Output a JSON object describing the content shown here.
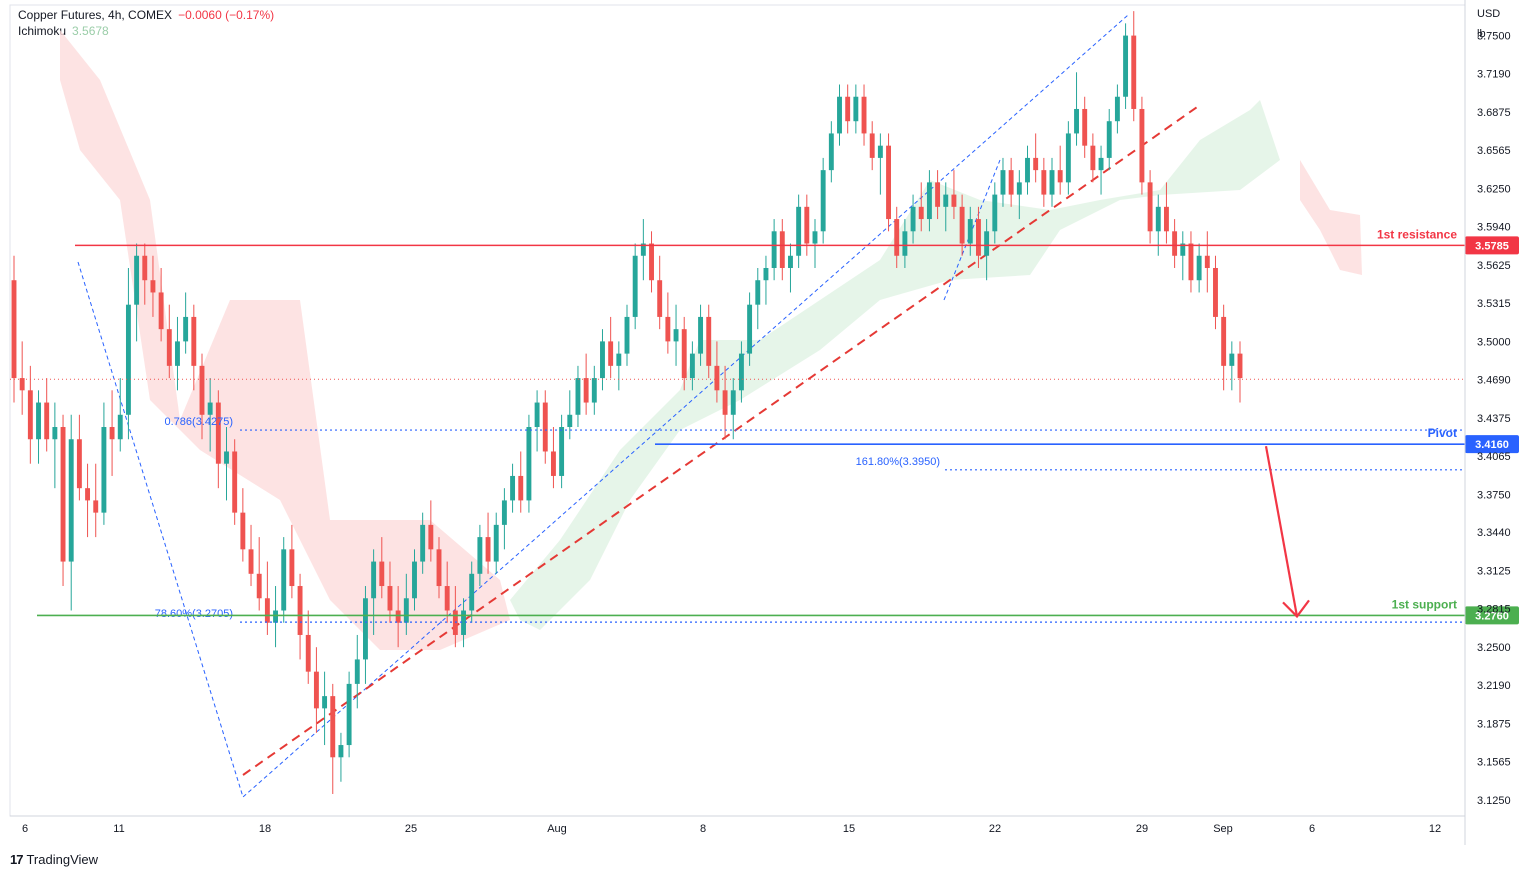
{
  "header": {
    "symbol_line": "Copper Futures, 4h, COMEX",
    "change": "−0.0060 (−0.17%)",
    "indicator_name": "Ichimoku",
    "indicator_value": "3.5678"
  },
  "branding": {
    "logo": "17",
    "name": "TradingView"
  },
  "colors": {
    "up": "#26a69a",
    "down": "#ef5350",
    "resistance": "#f23645",
    "pivot": "#2962ff",
    "support": "#4caf50",
    "fib": "#2962ff",
    "cloud_red": "#fddcdc",
    "cloud_green": "#e3f4e7"
  },
  "chart_data": {
    "type": "candlestick",
    "title": "Copper Futures, 4h, COMEX",
    "currency_label": "USD",
    "unit_label": "lb",
    "ylim": [
      3.112,
      3.775
    ],
    "y_ticks": [
      "3.7500",
      "3.7190",
      "3.6875",
      "3.6565",
      "3.6250",
      "3.5940",
      "3.5625",
      "3.5315",
      "3.5000",
      "3.4690",
      "3.4375",
      "3.4065",
      "3.3750",
      "3.3440",
      "3.3125",
      "3.2815",
      "3.2500",
      "3.2190",
      "3.1875",
      "3.1565",
      "3.1250"
    ],
    "x_ticks": [
      "6",
      "11",
      "18",
      "25",
      "Aug",
      "8",
      "15",
      "22",
      "29",
      "Sep",
      "6",
      "12"
    ],
    "last_price": 3.469,
    "levels": [
      {
        "name": "1st resistance",
        "label": "1st resistance",
        "value": 3.5785,
        "price_label": "3.5785",
        "color": "#f23645"
      },
      {
        "name": "Pivot",
        "label": "Pivot",
        "value": 3.416,
        "price_label": "3.4160",
        "color": "#2962ff"
      },
      {
        "name": "1st support",
        "label": "1st support",
        "value": 3.276,
        "price_label": "3.2760",
        "color": "#4caf50"
      }
    ],
    "fib_levels": [
      {
        "label": "0.786(3.4275)",
        "value": 3.4275
      },
      {
        "label": "161.80%(3.3950)",
        "value": 3.395
      },
      {
        "label": "78.60%(3.2705)",
        "value": 3.2705
      }
    ],
    "candles": [
      [
        3.55,
        3.57,
        3.45,
        3.47
      ],
      [
        3.47,
        3.5,
        3.44,
        3.46
      ],
      [
        3.46,
        3.48,
        3.4,
        3.42
      ],
      [
        3.42,
        3.46,
        3.4,
        3.45
      ],
      [
        3.45,
        3.47,
        3.41,
        3.42
      ],
      [
        3.42,
        3.45,
        3.38,
        3.43
      ],
      [
        3.43,
        3.44,
        3.3,
        3.32
      ],
      [
        3.32,
        3.44,
        3.28,
        3.42
      ],
      [
        3.42,
        3.44,
        3.37,
        3.38
      ],
      [
        3.38,
        3.4,
        3.34,
        3.37
      ],
      [
        3.37,
        3.4,
        3.34,
        3.36
      ],
      [
        3.36,
        3.45,
        3.35,
        3.43
      ],
      [
        3.43,
        3.46,
        3.39,
        3.42
      ],
      [
        3.42,
        3.47,
        3.41,
        3.44
      ],
      [
        3.44,
        3.56,
        3.42,
        3.53
      ],
      [
        3.53,
        3.58,
        3.5,
        3.57
      ],
      [
        3.57,
        3.58,
        3.53,
        3.55
      ],
      [
        3.55,
        3.57,
        3.52,
        3.54
      ],
      [
        3.54,
        3.56,
        3.5,
        3.51
      ],
      [
        3.51,
        3.53,
        3.47,
        3.48
      ],
      [
        3.48,
        3.52,
        3.46,
        3.5
      ],
      [
        3.5,
        3.54,
        3.49,
        3.52
      ],
      [
        3.52,
        3.53,
        3.46,
        3.48
      ],
      [
        3.48,
        3.49,
        3.42,
        3.44
      ],
      [
        3.44,
        3.47,
        3.41,
        3.45
      ],
      [
        3.45,
        3.46,
        3.38,
        3.4
      ],
      [
        3.4,
        3.43,
        3.37,
        3.41
      ],
      [
        3.41,
        3.42,
        3.35,
        3.36
      ],
      [
        3.36,
        3.38,
        3.32,
        3.33
      ],
      [
        3.33,
        3.35,
        3.3,
        3.31
      ],
      [
        3.31,
        3.34,
        3.28,
        3.29
      ],
      [
        3.29,
        3.32,
        3.26,
        3.27
      ],
      [
        3.27,
        3.3,
        3.25,
        3.28
      ],
      [
        3.28,
        3.34,
        3.27,
        3.33
      ],
      [
        3.33,
        3.35,
        3.29,
        3.3
      ],
      [
        3.3,
        3.31,
        3.24,
        3.26
      ],
      [
        3.26,
        3.28,
        3.22,
        3.23
      ],
      [
        3.23,
        3.25,
        3.18,
        3.2
      ],
      [
        3.2,
        3.23,
        3.17,
        3.21
      ],
      [
        3.21,
        3.22,
        3.13,
        3.16
      ],
      [
        3.16,
        3.18,
        3.14,
        3.17
      ],
      [
        3.17,
        3.23,
        3.16,
        3.22
      ],
      [
        3.22,
        3.26,
        3.2,
        3.24
      ],
      [
        3.24,
        3.3,
        3.22,
        3.29
      ],
      [
        3.29,
        3.33,
        3.26,
        3.32
      ],
      [
        3.32,
        3.34,
        3.29,
        3.3
      ],
      [
        3.3,
        3.32,
        3.27,
        3.28
      ],
      [
        3.28,
        3.3,
        3.25,
        3.27
      ],
      [
        3.27,
        3.31,
        3.26,
        3.29
      ],
      [
        3.29,
        3.33,
        3.28,
        3.32
      ],
      [
        3.32,
        3.36,
        3.31,
        3.35
      ],
      [
        3.35,
        3.37,
        3.32,
        3.33
      ],
      [
        3.33,
        3.34,
        3.29,
        3.3
      ],
      [
        3.3,
        3.32,
        3.27,
        3.28
      ],
      [
        3.28,
        3.3,
        3.25,
        3.26
      ],
      [
        3.26,
        3.29,
        3.25,
        3.28
      ],
      [
        3.28,
        3.32,
        3.27,
        3.31
      ],
      [
        3.31,
        3.35,
        3.3,
        3.34
      ],
      [
        3.34,
        3.36,
        3.31,
        3.32
      ],
      [
        3.32,
        3.36,
        3.31,
        3.35
      ],
      [
        3.35,
        3.38,
        3.33,
        3.37
      ],
      [
        3.37,
        3.4,
        3.36,
        3.39
      ],
      [
        3.39,
        3.41,
        3.36,
        3.37
      ],
      [
        3.37,
        3.44,
        3.36,
        3.43
      ],
      [
        3.43,
        3.46,
        3.41,
        3.45
      ],
      [
        3.45,
        3.46,
        3.4,
        3.41
      ],
      [
        3.41,
        3.43,
        3.38,
        3.39
      ],
      [
        3.39,
        3.44,
        3.38,
        3.43
      ],
      [
        3.43,
        3.46,
        3.42,
        3.44
      ],
      [
        3.44,
        3.48,
        3.43,
        3.47
      ],
      [
        3.47,
        3.49,
        3.44,
        3.45
      ],
      [
        3.45,
        3.48,
        3.44,
        3.47
      ],
      [
        3.47,
        3.51,
        3.46,
        3.5
      ],
      [
        3.5,
        3.52,
        3.47,
        3.48
      ],
      [
        3.48,
        3.5,
        3.46,
        3.49
      ],
      [
        3.49,
        3.53,
        3.48,
        3.52
      ],
      [
        3.52,
        3.58,
        3.51,
        3.57
      ],
      [
        3.57,
        3.6,
        3.55,
        3.58
      ],
      [
        3.58,
        3.59,
        3.54,
        3.55
      ],
      [
        3.55,
        3.57,
        3.51,
        3.52
      ],
      [
        3.52,
        3.54,
        3.49,
        3.5
      ],
      [
        3.5,
        3.53,
        3.48,
        3.51
      ],
      [
        3.51,
        3.52,
        3.46,
        3.47
      ],
      [
        3.47,
        3.5,
        3.46,
        3.49
      ],
      [
        3.49,
        3.53,
        3.48,
        3.52
      ],
      [
        3.52,
        3.53,
        3.47,
        3.48
      ],
      [
        3.48,
        3.5,
        3.45,
        3.46
      ],
      [
        3.46,
        3.48,
        3.42,
        3.44
      ],
      [
        3.44,
        3.47,
        3.42,
        3.46
      ],
      [
        3.46,
        3.5,
        3.45,
        3.49
      ],
      [
        3.49,
        3.54,
        3.48,
        3.53
      ],
      [
        3.53,
        3.56,
        3.51,
        3.55
      ],
      [
        3.55,
        3.57,
        3.53,
        3.56
      ],
      [
        3.56,
        3.6,
        3.55,
        3.59
      ],
      [
        3.59,
        3.6,
        3.55,
        3.56
      ],
      [
        3.56,
        3.58,
        3.54,
        3.57
      ],
      [
        3.57,
        3.62,
        3.56,
        3.61
      ],
      [
        3.61,
        3.62,
        3.57,
        3.58
      ],
      [
        3.58,
        3.6,
        3.56,
        3.59
      ],
      [
        3.59,
        3.65,
        3.58,
        3.64
      ],
      [
        3.64,
        3.68,
        3.63,
        3.67
      ],
      [
        3.67,
        3.71,
        3.66,
        3.7
      ],
      [
        3.7,
        3.71,
        3.67,
        3.68
      ],
      [
        3.68,
        3.71,
        3.67,
        3.7
      ],
      [
        3.7,
        3.71,
        3.66,
        3.67
      ],
      [
        3.67,
        3.68,
        3.64,
        3.65
      ],
      [
        3.65,
        3.67,
        3.62,
        3.66
      ],
      [
        3.66,
        3.67,
        3.59,
        3.6
      ],
      [
        3.6,
        3.61,
        3.56,
        3.57
      ],
      [
        3.57,
        3.6,
        3.56,
        3.59
      ],
      [
        3.59,
        3.62,
        3.58,
        3.61
      ],
      [
        3.61,
        3.63,
        3.59,
        3.6
      ],
      [
        3.6,
        3.64,
        3.59,
        3.63
      ],
      [
        3.63,
        3.64,
        3.6,
        3.61
      ],
      [
        3.61,
        3.63,
        3.59,
        3.62
      ],
      [
        3.62,
        3.64,
        3.6,
        3.61
      ],
      [
        3.61,
        3.62,
        3.57,
        3.58
      ],
      [
        3.58,
        3.61,
        3.57,
        3.6
      ],
      [
        3.6,
        3.61,
        3.56,
        3.57
      ],
      [
        3.57,
        3.6,
        3.55,
        3.59
      ],
      [
        3.59,
        3.63,
        3.58,
        3.62
      ],
      [
        3.62,
        3.65,
        3.61,
        3.64
      ],
      [
        3.64,
        3.65,
        3.61,
        3.62
      ],
      [
        3.62,
        3.64,
        3.6,
        3.63
      ],
      [
        3.63,
        3.66,
        3.62,
        3.65
      ],
      [
        3.65,
        3.67,
        3.63,
        3.64
      ],
      [
        3.64,
        3.65,
        3.61,
        3.62
      ],
      [
        3.62,
        3.65,
        3.61,
        3.64
      ],
      [
        3.64,
        3.66,
        3.62,
        3.63
      ],
      [
        3.63,
        3.68,
        3.62,
        3.67
      ],
      [
        3.67,
        3.72,
        3.66,
        3.69
      ],
      [
        3.69,
        3.7,
        3.65,
        3.66
      ],
      [
        3.66,
        3.67,
        3.63,
        3.64
      ],
      [
        3.64,
        3.66,
        3.62,
        3.65
      ],
      [
        3.65,
        3.69,
        3.64,
        3.68
      ],
      [
        3.68,
        3.71,
        3.67,
        3.7
      ],
      [
        3.7,
        3.76,
        3.69,
        3.75
      ],
      [
        3.75,
        3.77,
        3.68,
        3.69
      ],
      [
        3.69,
        3.7,
        3.62,
        3.63
      ],
      [
        3.63,
        3.64,
        3.58,
        3.59
      ],
      [
        3.59,
        3.62,
        3.57,
        3.61
      ],
      [
        3.61,
        3.63,
        3.58,
        3.59
      ],
      [
        3.59,
        3.6,
        3.56,
        3.57
      ],
      [
        3.57,
        3.59,
        3.55,
        3.58
      ],
      [
        3.58,
        3.59,
        3.54,
        3.55
      ],
      [
        3.55,
        3.58,
        3.54,
        3.57
      ],
      [
        3.57,
        3.59,
        3.54,
        3.56
      ],
      [
        3.56,
        3.57,
        3.51,
        3.52
      ],
      [
        3.52,
        3.53,
        3.46,
        3.48
      ],
      [
        3.48,
        3.5,
        3.46,
        3.49
      ],
      [
        3.49,
        3.5,
        3.45,
        3.47
      ]
    ]
  }
}
